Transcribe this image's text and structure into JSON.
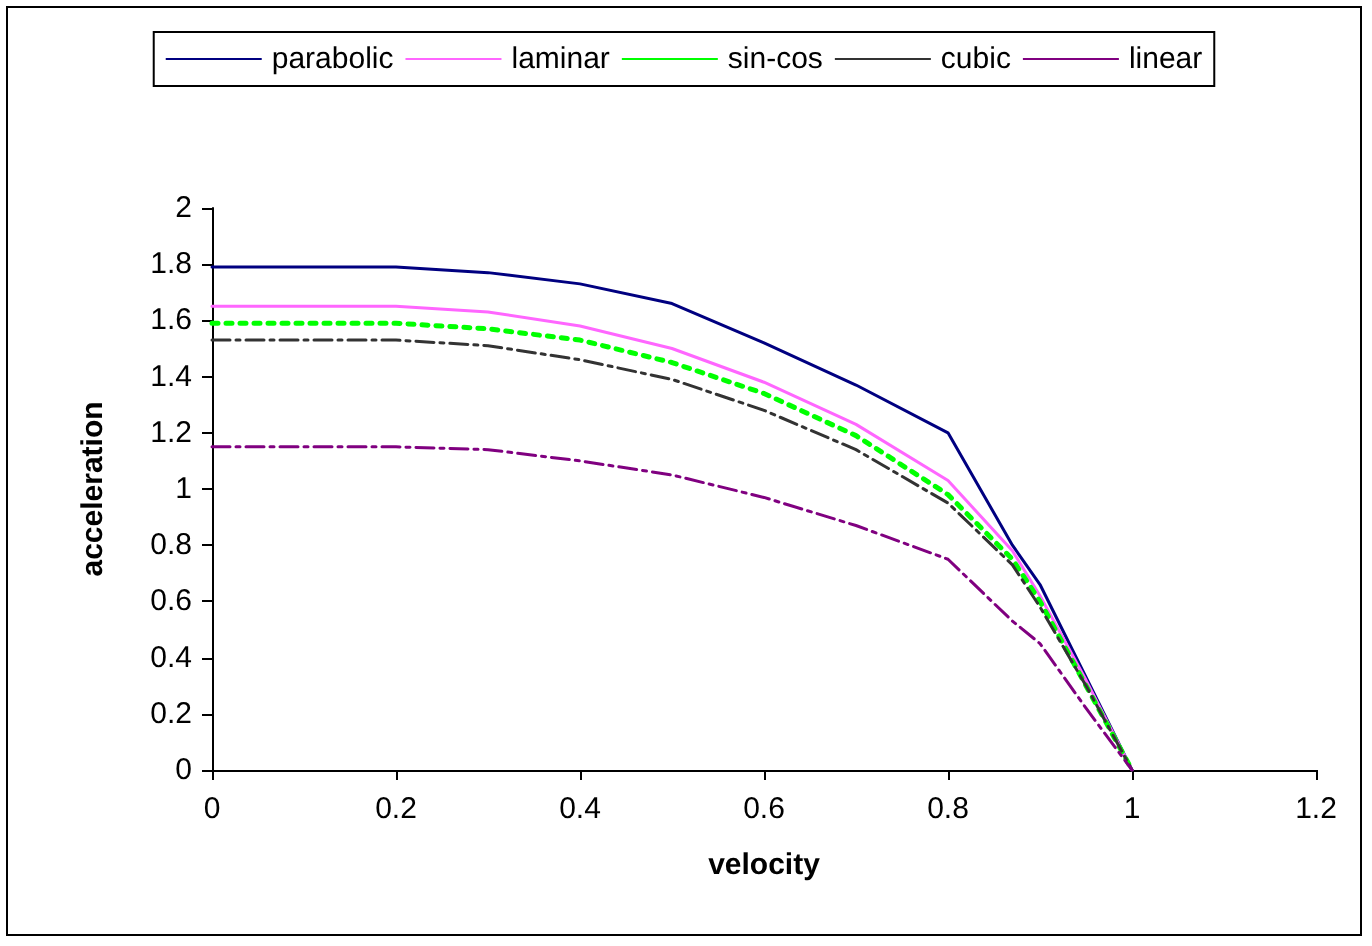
{
  "chart_data": {
    "type": "line",
    "xlabel": "velocity",
    "ylabel": "acceleration",
    "x": [
      0,
      0.1,
      0.2,
      0.3,
      0.4,
      0.5,
      0.6,
      0.7,
      0.8,
      0.87,
      0.9,
      0.95,
      1
    ],
    "series": [
      {
        "name": "parabolic",
        "color": "#000080",
        "line_style": "solid",
        "values": [
          1.79,
          1.79,
          1.79,
          1.77,
          1.73,
          1.66,
          1.52,
          1.37,
          1.2,
          0.8,
          0.66,
          0.33,
          0
        ]
      },
      {
        "name": "laminar",
        "color": "#ff66ff",
        "line_style": "solid",
        "values": [
          1.65,
          1.65,
          1.65,
          1.63,
          1.58,
          1.5,
          1.38,
          1.23,
          1.03,
          0.78,
          0.62,
          0.32,
          0
        ]
      },
      {
        "name": "sin-cos",
        "color": "#00ff00",
        "line_style": "dotted",
        "values": [
          1.59,
          1.59,
          1.59,
          1.57,
          1.53,
          1.45,
          1.34,
          1.19,
          0.98,
          0.75,
          0.6,
          0.3,
          0
        ]
      },
      {
        "name": "cubic",
        "color": "#333333",
        "line_style": "dashed",
        "values": [
          1.53,
          1.53,
          1.53,
          1.51,
          1.46,
          1.39,
          1.28,
          1.14,
          0.95,
          0.73,
          0.58,
          0.3,
          0
        ]
      },
      {
        "name": "linear",
        "color": "#800080",
        "line_style": "dashed",
        "values": [
          1.15,
          1.15,
          1.15,
          1.14,
          1.1,
          1.05,
          0.97,
          0.87,
          0.75,
          0.53,
          0.45,
          0.22,
          0
        ]
      }
    ],
    "xlim": [
      0,
      1.2
    ],
    "xticks": [
      0,
      0.2,
      0.4,
      0.6,
      0.8,
      1,
      1.2
    ],
    "ylim": [
      0,
      2
    ],
    "yticks": [
      0,
      0.2,
      0.4,
      0.6,
      0.8,
      1,
      1.2,
      1.4,
      1.6,
      1.8,
      2
    ],
    "grid": false,
    "legend": "top",
    "marker": "none"
  }
}
